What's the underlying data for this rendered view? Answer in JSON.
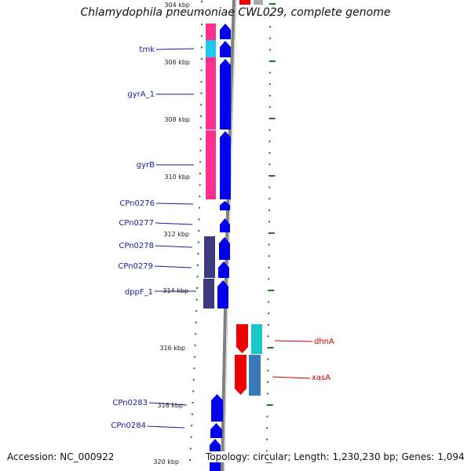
{
  "title": "Chlamydophila pneumoniae CWL029, complete genome",
  "accession": "Accession: NC_000922",
  "topology": "Topology: circular; Length: 1,230,230 bp; Genes: 1,094",
  "colors": {
    "backbone": "#808080",
    "tick": "#1a7a1a",
    "left_label": "#1a1aa8",
    "right_label": "#cc0000",
    "pink": "#ff2f8e",
    "cyan_small": "#1fc7f0",
    "purple": "#3b3a80",
    "blue": "#0000ee",
    "red": "#ee0000",
    "teal": "#18c8c8",
    "steelblue": "#3a7ab8"
  },
  "ruler": [
    {
      "label": "304 kbp"
    },
    {
      "label": "306 kbp"
    },
    {
      "label": "308 kbp"
    },
    {
      "label": "310 kbp"
    },
    {
      "label": "312 kbp"
    },
    {
      "label": "314 kbp"
    },
    {
      "label": "316 kbp"
    },
    {
      "label": "318 kbp"
    },
    {
      "label": "320 kbp"
    }
  ],
  "left_genes": [
    {
      "label": "tmk"
    },
    {
      "label": "gyrA_1"
    },
    {
      "label": "gyrB"
    },
    {
      "label": "CPn0276"
    },
    {
      "label": "CPn0277"
    },
    {
      "label": "CPn0278"
    },
    {
      "label": "CPn0279"
    },
    {
      "label": "dppF_1"
    },
    {
      "label": "CPn0283"
    },
    {
      "label": "CPn0284"
    }
  ],
  "right_genes": [
    {
      "label": "dhnA"
    },
    {
      "label": "xasA"
    }
  ]
}
